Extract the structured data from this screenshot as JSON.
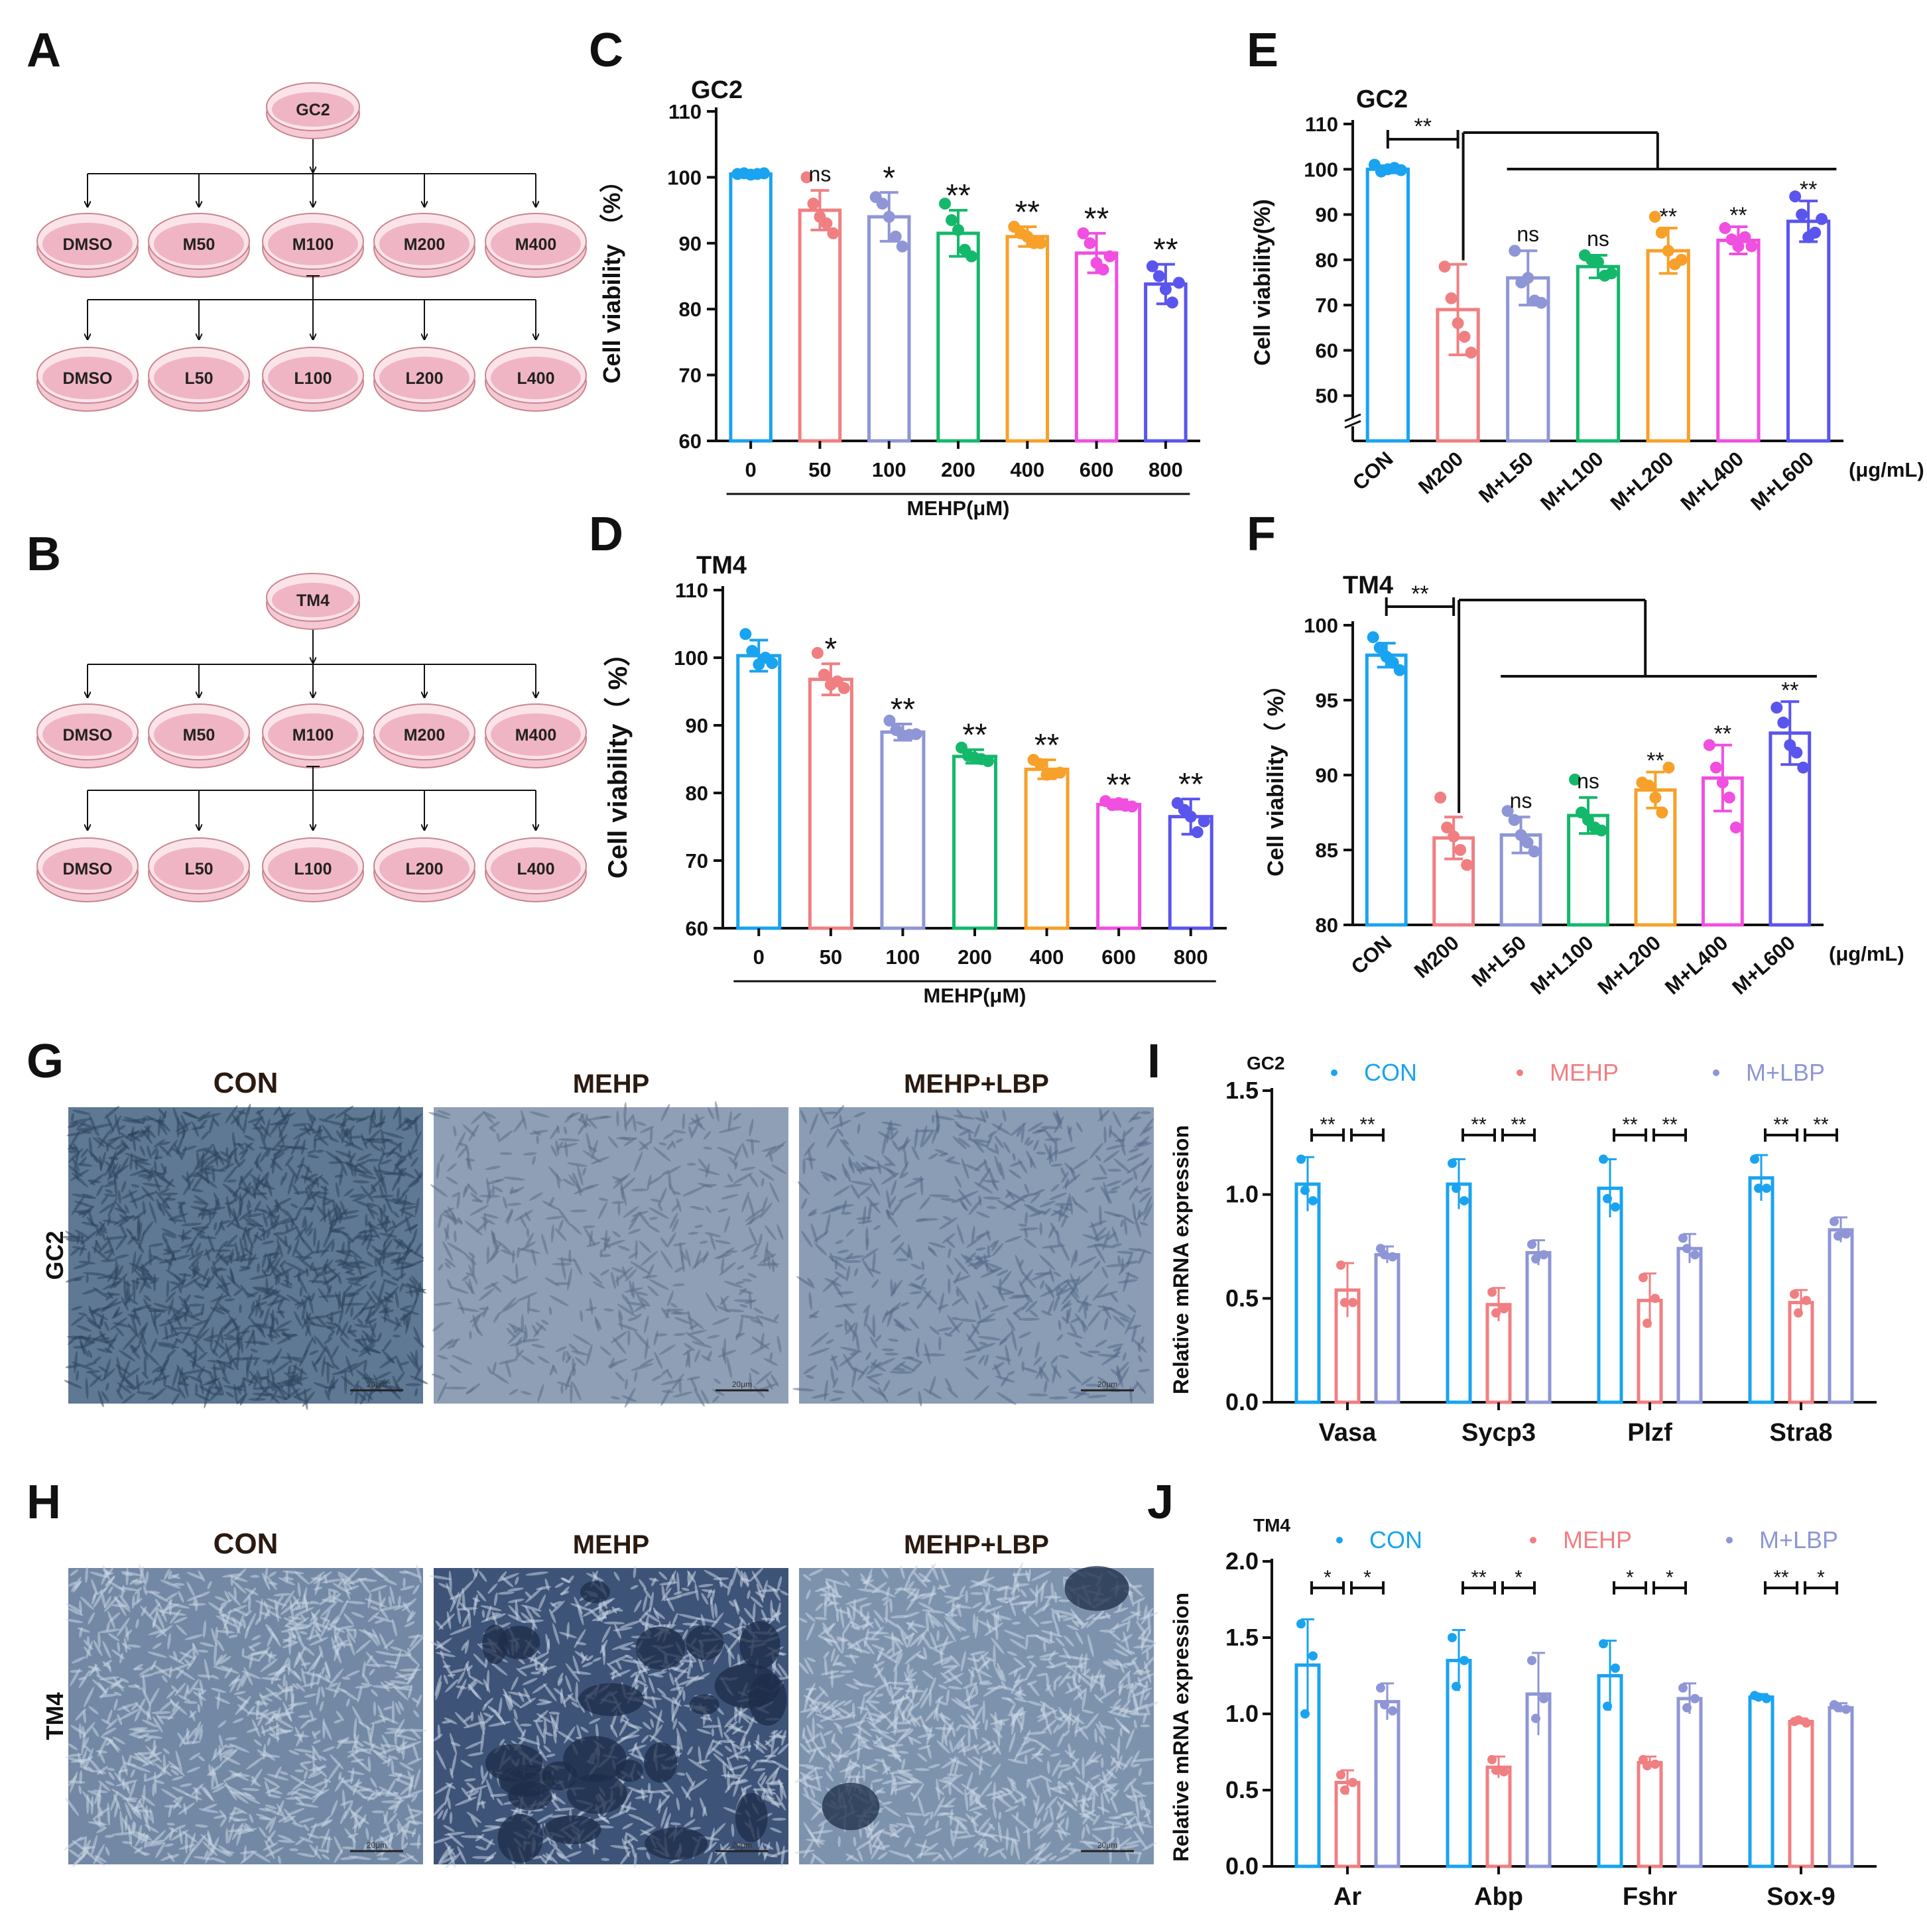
{
  "panel_labels": {
    "A": "A",
    "B": "B",
    "C": "C",
    "D": "D",
    "E": "E",
    "F": "F",
    "G": "G",
    "H": "H",
    "I": "I",
    "J": "J"
  },
  "colors": {
    "CON": "#1aa3f0",
    "M50": "#f07f82",
    "M100": "#8e96d6",
    "M200": "#14b86b",
    "M400": "#f7a02a",
    "M600": "#f04fe0",
    "M800": "#5a55ec",
    "L50": "#8e96d6",
    "L100": "#14b86b",
    "L200": "#f7a02a",
    "L400": "#f04fe0",
    "L600": "#5a55ec",
    "MEHP": "#f07f82",
    "MLBP": "#8e96d6",
    "dish_fill": "#f5c9d4",
    "dish_edge": "#c9858f",
    "dish_inner": "#f0b5c4"
  },
  "schemes": [
    {
      "root": "GC2",
      "row1": [
        "DMSO",
        "M50",
        "M100",
        "M200",
        "M400"
      ],
      "row2": [
        "DMSO",
        "L50",
        "L100",
        "L200",
        "L400"
      ]
    },
    {
      "root": "TM4",
      "row1": [
        "DMSO",
        "M50",
        "M100",
        "M200",
        "M400"
      ],
      "row2": [
        "DMSO",
        "L50",
        "L100",
        "L200",
        "L400"
      ]
    }
  ],
  "chart_data": [
    {
      "id": "C",
      "type": "bar",
      "title": "GC2",
      "ylabel": "Cell viability （%）",
      "xlabel": "MEHP(μM)",
      "categories": [
        "0",
        "50",
        "100",
        "200",
        "400",
        "600",
        "800"
      ],
      "values": [
        100.5,
        95,
        94,
        91.5,
        91,
        88.5,
        83.8
      ],
      "sd": [
        0.3,
        3.0,
        3.7,
        3.5,
        1.5,
        3.0,
        3.0
      ],
      "points": [
        [
          100.5,
          100.6,
          100.4,
          100.5,
          100.6
        ],
        [
          100,
          96,
          94,
          93,
          91.5
        ],
        [
          97,
          96,
          94,
          91,
          89.5
        ],
        [
          96,
          93.5,
          92,
          89,
          88
        ],
        [
          92.5,
          91.5,
          91,
          90,
          90
        ],
        [
          91.5,
          90,
          87,
          86,
          88
        ],
        [
          86.5,
          85,
          83,
          81,
          84
        ]
      ],
      "colors": [
        "CON",
        "M50",
        "M100",
        "M200",
        "M400",
        "M600",
        "M800"
      ],
      "significance": [
        "",
        "ns",
        "*",
        "**",
        "**",
        "**",
        "**"
      ],
      "ylim": [
        60,
        110
      ],
      "yticks": [
        60,
        70,
        80,
        90,
        100,
        110
      ]
    },
    {
      "id": "D",
      "type": "bar",
      "title": "TM4",
      "ylabel": "Cell viability（ %）",
      "xlabel": "MEHP(μM)",
      "categories": [
        "0",
        "50",
        "100",
        "200",
        "400",
        "600",
        "800"
      ],
      "values": [
        100.3,
        96.8,
        89,
        85.4,
        83.5,
        78.3,
        76.5
      ],
      "sd": [
        2.3,
        2.3,
        1.2,
        1.0,
        1.4,
        0.7,
        2.6
      ],
      "points": [
        [
          103.5,
          101,
          99,
          100,
          99.2
        ],
        [
          100.7,
          97.5,
          96,
          96.5,
          95.5
        ],
        [
          90.7,
          89.3,
          88.5,
          88.6,
          88.7
        ],
        [
          86.7,
          85.5,
          85.2,
          85,
          84.7
        ],
        [
          84.9,
          84.3,
          82.7,
          82.8,
          83
        ],
        [
          78.8,
          78.2,
          78.5,
          78.1,
          78
        ],
        [
          78.5,
          77.5,
          76.5,
          74.2,
          75.8
        ]
      ],
      "colors": [
        "CON",
        "M50",
        "M100",
        "M200",
        "M400",
        "M600",
        "M800"
      ],
      "significance": [
        "",
        "*",
        "**",
        "**",
        "**",
        "**",
        "**"
      ],
      "ylim": [
        60,
        110
      ],
      "yticks": [
        60,
        70,
        80,
        90,
        100,
        110
      ]
    },
    {
      "id": "E",
      "type": "bar",
      "title": "GC2",
      "ylabel": "Cell viability(%)",
      "unit": "(μg/mL)",
      "categories": [
        "CON",
        "M200",
        "M+L50",
        "M+L100",
        "M+L200",
        "M+L400",
        "M+L600"
      ],
      "values": [
        100,
        69,
        76,
        78.5,
        82,
        84.3,
        88.5
      ],
      "sd": [
        0.8,
        10,
        6,
        2.5,
        5,
        3,
        4.5
      ],
      "points": [
        [
          101,
          99.5,
          100,
          100.3,
          99.8
        ],
        [
          78.5,
          71.5,
          66,
          63,
          59.5
        ],
        [
          82,
          75,
          76,
          71,
          70.5
        ],
        [
          81,
          80,
          79.5,
          76.5,
          77
        ],
        [
          89.5,
          86,
          82,
          79,
          80
        ],
        [
          87,
          84.5,
          83,
          85,
          83
        ],
        [
          94,
          90,
          85,
          86,
          89
        ]
      ],
      "colors": [
        "CON",
        "MEHP",
        "L50",
        "L100",
        "L200",
        "L400",
        "L600"
      ],
      "significance": [
        "",
        "",
        "ns",
        "ns",
        "**",
        "**",
        "**"
      ],
      "comparisons": [
        {
          "label": "**"
        }
      ],
      "ylim": [
        40,
        110
      ],
      "yticks": [
        50,
        60,
        70,
        80,
        90,
        100,
        110
      ]
    },
    {
      "id": "F",
      "type": "bar",
      "title": "TM4",
      "ylabel": "Cell viability（ %）",
      "unit": "(μg/mL)",
      "categories": [
        "CON",
        "M200",
        "M+L50",
        "M+L100",
        "M+L200",
        "M+L400",
        "M+L600"
      ],
      "values": [
        98,
        85.8,
        86,
        87.3,
        89,
        89.8,
        92.8
      ],
      "sd": [
        0.8,
        1.4,
        1.2,
        1.2,
        1.2,
        2.2,
        2.1
      ],
      "points": [
        [
          99.2,
          98.5,
          97.9,
          97.5,
          97
        ],
        [
          88.5,
          86.5,
          85.9,
          85,
          84
        ],
        [
          87.6,
          87,
          86,
          85.5,
          84.9
        ],
        [
          89.7,
          87.5,
          87,
          86.5,
          86.3
        ],
        [
          89.5,
          89.3,
          88.5,
          87.5,
          90.5
        ],
        [
          92,
          90.5,
          89.5,
          88.5,
          86.5
        ],
        [
          94.5,
          93.5,
          92,
          91.5,
          90.5
        ]
      ],
      "colors": [
        "CON",
        "MEHP",
        "L50",
        "L100",
        "L200",
        "L400",
        "L600"
      ],
      "significance": [
        "",
        "",
        "ns",
        "ns",
        "**",
        "**",
        "**"
      ],
      "comparisons": [
        {
          "label": "**"
        }
      ],
      "ylim": [
        80,
        100
      ],
      "yticks": [
        80,
        85,
        90,
        95,
        100
      ]
    },
    {
      "id": "I",
      "type": "grouped_bar",
      "title": "GC2",
      "ylabel": "Relative mRNA expression",
      "categories": [
        "Vasa",
        "Sycp3",
        "Plzf",
        "Stra8"
      ],
      "series": [
        {
          "name": "CON",
          "color": "CON",
          "values": [
            1.05,
            1.05,
            1.03,
            1.08
          ],
          "sd": [
            0.13,
            0.12,
            0.14,
            0.11
          ],
          "points": [
            [
              1.17,
              0.97,
              1.02
            ],
            [
              1.15,
              0.97,
              1.03
            ],
            [
              1.17,
              0.94,
              0.98
            ],
            [
              1.17,
              1.03,
              1.03
            ]
          ]
        },
        {
          "name": "MEHP",
          "color": "MEHP",
          "values": [
            0.54,
            0.47,
            0.49,
            0.48
          ],
          "sd": [
            0.13,
            0.08,
            0.13,
            0.06
          ],
          "points": [
            [
              0.66,
              0.48,
              0.48
            ],
            [
              0.53,
              0.45,
              0.43
            ],
            [
              0.6,
              0.5,
              0.38
            ],
            [
              0.52,
              0.49,
              0.43
            ]
          ]
        },
        {
          "name": "M+LBP",
          "color": "MLBP",
          "values": [
            0.71,
            0.72,
            0.74,
            0.83
          ],
          "sd": [
            0.04,
            0.06,
            0.07,
            0.06
          ],
          "points": [
            [
              0.74,
              0.7,
              0.71
            ],
            [
              0.76,
              0.71,
              0.69
            ],
            [
              0.79,
              0.71,
              0.74
            ],
            [
              0.87,
              0.81,
              0.8
            ]
          ]
        }
      ],
      "significance": [
        [
          "**",
          "**"
        ],
        [
          "**",
          "**"
        ],
        [
          "**",
          "**"
        ],
        [
          "**",
          "**"
        ]
      ],
      "ylim": [
        0,
        1.5
      ],
      "yticks": [
        0.0,
        0.5,
        1.0,
        1.5
      ]
    },
    {
      "id": "J",
      "type": "grouped_bar",
      "title": "TM4",
      "ylabel": "Relative mRNA expression",
      "categories": [
        "Ar",
        "Abp",
        "Fshr",
        "Sox-9"
      ],
      "series": [
        {
          "name": "CON",
          "color": "CON",
          "values": [
            1.32,
            1.35,
            1.25,
            1.11
          ],
          "sd": [
            0.3,
            0.2,
            0.23,
            0.02
          ],
          "points": [
            [
              1.59,
              1.38,
              1.0
            ],
            [
              1.5,
              1.35,
              1.18
            ],
            [
              1.46,
              1.3,
              1.05
            ],
            [
              1.12,
              1.1,
              1.11
            ]
          ]
        },
        {
          "name": "MEHP",
          "color": "MEHP",
          "values": [
            0.55,
            0.65,
            0.68,
            0.95
          ],
          "sd": [
            0.08,
            0.07,
            0.04,
            0.02
          ],
          "points": [
            [
              0.6,
              0.55,
              0.5
            ],
            [
              0.7,
              0.62,
              0.63
            ],
            [
              0.7,
              0.67,
              0.66
            ],
            [
              0.95,
              0.94,
              0.96
            ]
          ]
        },
        {
          "name": "M+LBP",
          "color": "MLBP",
          "values": [
            1.08,
            1.13,
            1.1,
            1.04
          ],
          "sd": [
            0.12,
            0.27,
            0.1,
            0.03
          ],
          "points": [
            [
              1.17,
              1.02,
              1.06
            ],
            [
              1.35,
              1.1,
              0.97
            ],
            [
              1.17,
              1.1,
              1.04
            ],
            [
              1.06,
              1.03,
              1.04
            ]
          ]
        }
      ],
      "significance": [
        [
          "*",
          "*"
        ],
        [
          "**",
          "*"
        ],
        [
          "*",
          "*"
        ],
        [
          "**",
          "*"
        ]
      ],
      "ylim": [
        0,
        2.0
      ],
      "yticks": [
        0.0,
        0.5,
        1.0,
        1.5,
        2.0
      ]
    }
  ],
  "micrographs": {
    "G": {
      "row": "GC2",
      "columns": [
        "CON",
        "MEHP",
        "MEHP+LBP"
      ],
      "scale": "20μm"
    },
    "H": {
      "row": "TM4",
      "columns": [
        "CON",
        "MEHP",
        "MEHP+LBP"
      ],
      "scale": "20μm"
    }
  }
}
